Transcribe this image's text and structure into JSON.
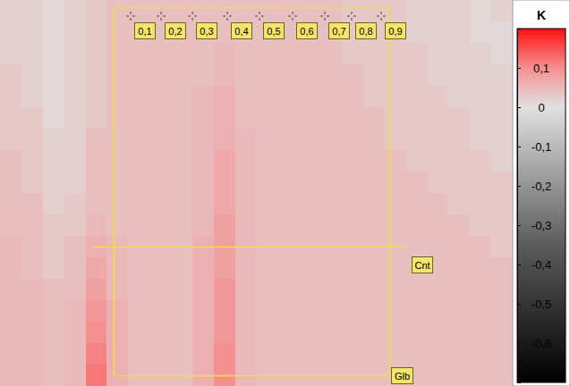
{
  "chart_data": {
    "type": "heatmap",
    "tick_labels": false,
    "cells": [
      [
        0.02,
        0.02,
        0.01,
        0.02,
        0.03,
        0.04,
        0.04,
        0.04,
        0.04,
        0.04,
        0.04,
        0.04,
        0.04,
        0.04,
        0.04,
        0.04,
        0.03,
        0.03,
        0.03,
        0.02,
        0.02,
        0.02,
        0.01,
        0.02
      ],
      [
        0.02,
        0.02,
        0.01,
        0.02,
        0.03,
        0.04,
        0.04,
        0.04,
        0.04,
        0.04,
        0.04,
        0.04,
        0.04,
        0.04,
        0.04,
        0.04,
        0.03,
        0.03,
        0.03,
        0.02,
        0.02,
        0.02,
        0.01,
        0.01
      ],
      [
        0.02,
        0.02,
        0.01,
        0.02,
        0.03,
        0.04,
        0.04,
        0.04,
        0.04,
        0.04,
        0.05,
        0.04,
        0.04,
        0.04,
        0.04,
        0.04,
        0.03,
        0.03,
        0.03,
        0.03,
        0.02,
        0.02,
        0.02,
        0.01
      ],
      [
        0.03,
        0.02,
        0.01,
        0.02,
        0.03,
        0.04,
        0.04,
        0.04,
        0.04,
        0.04,
        0.05,
        0.04,
        0.04,
        0.04,
        0.04,
        0.04,
        0.04,
        0.03,
        0.03,
        0.03,
        0.02,
        0.02,
        0.02,
        0.02
      ],
      [
        0.03,
        0.02,
        0.01,
        0.02,
        0.03,
        0.04,
        0.04,
        0.04,
        0.04,
        0.05,
        0.06,
        0.04,
        0.04,
        0.04,
        0.04,
        0.04,
        0.04,
        0.03,
        0.03,
        0.03,
        0.03,
        0.02,
        0.02,
        0.02
      ],
      [
        0.03,
        0.03,
        0.01,
        0.02,
        0.03,
        0.04,
        0.04,
        0.04,
        0.04,
        0.05,
        0.06,
        0.04,
        0.04,
        0.04,
        0.04,
        0.04,
        0.04,
        0.04,
        0.03,
        0.03,
        0.03,
        0.03,
        0.02,
        0.02
      ],
      [
        0.03,
        0.03,
        0.02,
        0.02,
        0.04,
        0.04,
        0.04,
        0.04,
        0.04,
        0.05,
        0.06,
        0.05,
        0.04,
        0.04,
        0.04,
        0.04,
        0.04,
        0.04,
        0.03,
        0.03,
        0.03,
        0.03,
        0.02,
        0.02
      ],
      [
        0.04,
        0.03,
        0.02,
        0.02,
        0.04,
        0.04,
        0.04,
        0.04,
        0.04,
        0.05,
        0.07,
        0.05,
        0.04,
        0.04,
        0.04,
        0.04,
        0.04,
        0.04,
        0.04,
        0.03,
        0.03,
        0.03,
        0.03,
        0.02
      ],
      [
        0.04,
        0.03,
        0.02,
        0.02,
        0.04,
        0.04,
        0.04,
        0.04,
        0.04,
        0.05,
        0.07,
        0.05,
        0.04,
        0.04,
        0.04,
        0.04,
        0.04,
        0.04,
        0.04,
        0.04,
        0.03,
        0.03,
        0.03,
        0.03
      ],
      [
        0.04,
        0.04,
        0.02,
        0.03,
        0.04,
        0.04,
        0.04,
        0.04,
        0.04,
        0.05,
        0.07,
        0.05,
        0.04,
        0.04,
        0.04,
        0.04,
        0.04,
        0.04,
        0.04,
        0.04,
        0.04,
        0.03,
        0.03,
        0.03
      ],
      [
        0.04,
        0.04,
        0.03,
        0.03,
        0.05,
        0.04,
        0.04,
        0.04,
        0.04,
        0.05,
        0.08,
        0.05,
        0.04,
        0.04,
        0.04,
        0.04,
        0.04,
        0.04,
        0.04,
        0.04,
        0.04,
        0.04,
        0.03,
        0.03
      ],
      [
        0.05,
        0.04,
        0.03,
        0.04,
        0.06,
        0.05,
        0.04,
        0.04,
        0.04,
        0.06,
        0.08,
        0.05,
        0.04,
        0.04,
        0.04,
        0.04,
        0.04,
        0.04,
        0.04,
        0.04,
        0.04,
        0.04,
        0.04,
        0.03
      ],
      [
        0.05,
        0.04,
        0.03,
        0.04,
        0.07,
        0.05,
        0.04,
        0.04,
        0.04,
        0.06,
        0.08,
        0.05,
        0.04,
        0.04,
        0.04,
        0.04,
        0.04,
        0.04,
        0.04,
        0.04,
        0.04,
        0.04,
        0.04,
        0.04
      ],
      [
        0.05,
        0.05,
        0.04,
        0.04,
        0.08,
        0.05,
        0.04,
        0.04,
        0.04,
        0.06,
        0.09,
        0.05,
        0.04,
        0.04,
        0.04,
        0.04,
        0.04,
        0.04,
        0.04,
        0.04,
        0.04,
        0.04,
        0.04,
        0.04
      ],
      [
        0.05,
        0.05,
        0.04,
        0.05,
        0.09,
        0.06,
        0.04,
        0.04,
        0.04,
        0.06,
        0.09,
        0.05,
        0.04,
        0.04,
        0.04,
        0.04,
        0.04,
        0.04,
        0.04,
        0.04,
        0.04,
        0.04,
        0.04,
        0.04
      ],
      [
        0.05,
        0.05,
        0.04,
        0.05,
        0.1,
        0.06,
        0.04,
        0.04,
        0.04,
        0.06,
        0.09,
        0.05,
        0.04,
        0.04,
        0.04,
        0.04,
        0.04,
        0.04,
        0.04,
        0.04,
        0.04,
        0.04,
        0.04,
        0.04
      ],
      [
        0.05,
        0.05,
        0.04,
        0.05,
        0.11,
        0.06,
        0.04,
        0.04,
        0.04,
        0.06,
        0.1,
        0.05,
        0.04,
        0.04,
        0.04,
        0.04,
        0.04,
        0.04,
        0.04,
        0.04,
        0.04,
        0.04,
        0.04,
        0.04
      ],
      [
        0.05,
        0.05,
        0.04,
        0.05,
        0.12,
        0.06,
        0.04,
        0.04,
        0.04,
        0.06,
        0.1,
        0.05,
        0.04,
        0.04,
        0.04,
        0.04,
        0.04,
        0.04,
        0.04,
        0.04,
        0.04,
        0.04,
        0.04,
        0.04
      ]
    ],
    "colorbar": {
      "title": "K",
      "range": [
        -0.7,
        0.2
      ],
      "ticks": [
        {
          "value": 0.1,
          "label": "0,1"
        },
        0,
        {
          "value": -0.1,
          "label": "-0,1"
        },
        {
          "value": -0.2,
          "label": "-0,2"
        },
        {
          "value": -0.3,
          "label": "-0,3"
        },
        {
          "value": -0.4,
          "label": "-0,4"
        },
        {
          "value": -0.5,
          "label": "-0,5"
        },
        {
          "value": -0.6,
          "label": "-0,6"
        }
      ]
    },
    "annotations": [
      "0,1",
      "0,2",
      "0,3",
      "0,4",
      "0,5",
      "0,6",
      "0,7",
      "0,8",
      "0,9",
      "Cnt",
      "Glb"
    ]
  }
}
